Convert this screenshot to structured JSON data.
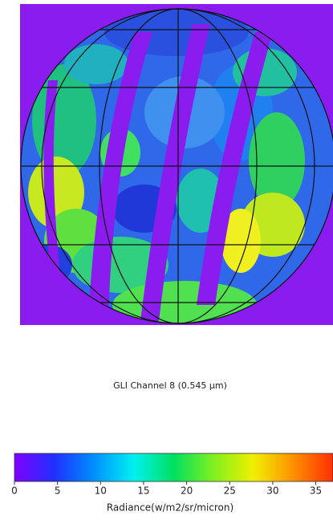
{
  "image": {
    "caption": "GLI Channel 8 (0.545 µm)"
  },
  "colorbar": {
    "label": "Radiance(w/m2/sr/micron)",
    "lim": [
      0,
      37
    ],
    "ticks": [
      0,
      5,
      10,
      15,
      20,
      25,
      30,
      35
    ],
    "colors": [
      "#7f00ff",
      "#2030ff",
      "#0090ff",
      "#00f0f0",
      "#00e060",
      "#80f020",
      "#f0f000",
      "#ff9000",
      "#ff3000"
    ]
  }
}
